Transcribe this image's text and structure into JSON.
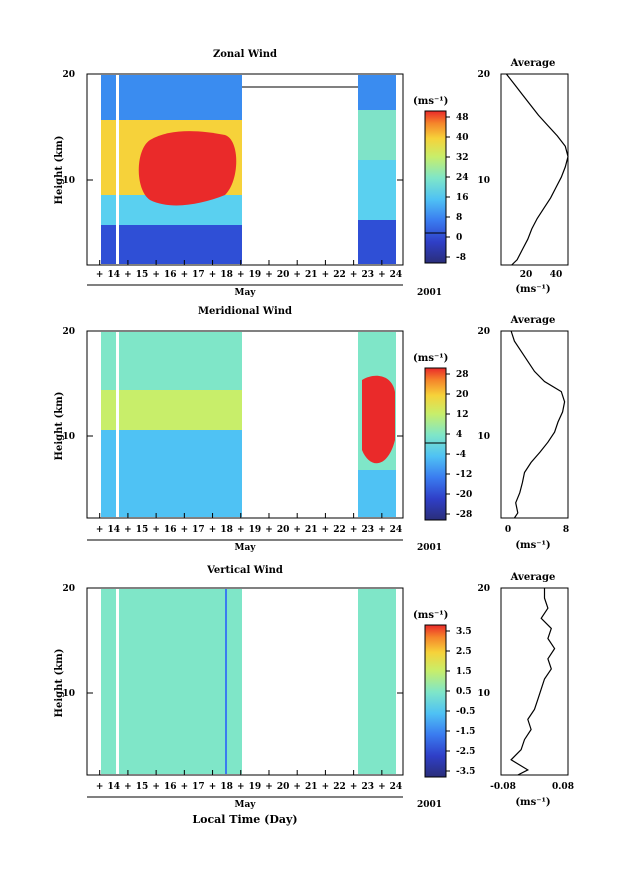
{
  "figure": {
    "xlabel": "Local Time (Day)",
    "month_label": "May",
    "year_label": "2001",
    "day_ticks": [
      "14",
      "15",
      "16",
      "17",
      "18",
      "19",
      "20",
      "21",
      "22",
      "23",
      "24"
    ]
  },
  "chart_data": [
    {
      "type": "heatmap",
      "title": "Zonal Wind",
      "ylabel": "Height (km)",
      "xlabel": "Local Time (Day)",
      "x_range_days": [
        14,
        24.5
      ],
      "ylim": [
        1.5,
        20
      ],
      "y_ticks": [
        10,
        20
      ],
      "data_gaps_days": [
        [
          19.2,
          23.1
        ]
      ],
      "colorbar": {
        "unit_label": "(ms⁻¹)",
        "ticks": [
          "48",
          "40",
          "32",
          "24",
          "16",
          "8",
          "0",
          "-8"
        ],
        "range": [
          -12,
          52
        ]
      },
      "features": [
        {
          "description": "strong westerly jet",
          "height_km": [
            8,
            13
          ],
          "days": [
            16.0,
            18.6
          ],
          "value_ms": 48
        },
        {
          "description": "weak/easterly winds near surface",
          "height_km": [
            1.5,
            4
          ],
          "value_ms": -4
        }
      ],
      "average_profile": {
        "title": "Average",
        "xlabel": "(ms⁻¹)",
        "x_ticks": [
          "20",
          "40"
        ],
        "y_ticks": [
          10,
          20
        ],
        "height_km": [
          1.5,
          2,
          3,
          4,
          5,
          6,
          7,
          8,
          9,
          10,
          11,
          12,
          13,
          14,
          15,
          16,
          17,
          18,
          19,
          20
        ],
        "values": [
          8,
          12,
          16,
          20,
          23,
          27,
          32,
          37,
          41,
          45,
          48,
          50,
          48,
          42,
          35,
          28,
          22,
          16,
          10,
          4
        ],
        "xlim": [
          0,
          50
        ]
      }
    },
    {
      "type": "heatmap",
      "title": "Meridional Wind",
      "ylabel": "Height (km)",
      "xlabel": "Local Time (Day)",
      "x_range_days": [
        14,
        24.5
      ],
      "ylim": [
        1.5,
        20
      ],
      "y_ticks": [
        10,
        20
      ],
      "data_gaps_days": [
        [
          19.2,
          23.1
        ]
      ],
      "colorbar": {
        "unit_label": "(ms⁻¹)",
        "ticks": [
          "28",
          "20",
          "12",
          "4",
          "-4",
          "-12",
          "-20",
          "-28"
        ],
        "range": [
          -32,
          32
        ]
      },
      "features": [
        {
          "description": "strong northerly flow",
          "height_km": [
            7,
            13
          ],
          "days": [
            23.3,
            24.2
          ],
          "value_ms": 28
        }
      ],
      "average_profile": {
        "title": "Average",
        "xlabel": "(ms⁻¹)",
        "x_ticks": [
          "0",
          "8"
        ],
        "y_ticks": [
          10,
          20
        ],
        "height_km": [
          1.5,
          2,
          3,
          4,
          5,
          6,
          7,
          8,
          9,
          10,
          11,
          12,
          13,
          14,
          15,
          16,
          17,
          18,
          19,
          20
        ],
        "values": [
          1.0,
          1.5,
          1.2,
          1.8,
          2.2,
          2.5,
          3.5,
          4.8,
          6.0,
          7.0,
          7.5,
          8.2,
          8.5,
          8.0,
          5.5,
          4.0,
          3.0,
          2.0,
          1.0,
          0.5
        ],
        "xlim": [
          -1,
          9
        ]
      }
    },
    {
      "type": "heatmap",
      "title": "Vertical Wind",
      "ylabel": "Height (km)",
      "xlabel": "Local Time (Day)",
      "x_range_days": [
        14,
        24.5
      ],
      "ylim": [
        1.5,
        20
      ],
      "y_ticks": [
        10,
        20
      ],
      "data_gaps_days": [
        [
          19.2,
          23.1
        ]
      ],
      "colorbar": {
        "unit_label": "(ms⁻¹)",
        "ticks": [
          "3.5",
          "2.5",
          "1.5",
          "0.5",
          "-0.5",
          "-1.5",
          "-2.5",
          "-3.5"
        ],
        "range": [
          -4,
          4
        ]
      },
      "features": [
        {
          "description": "near-zero vertical wind throughout",
          "value_ms": 0
        }
      ],
      "average_profile": {
        "title": "Average",
        "xlabel": "(ms⁻¹)",
        "x_ticks": [
          "-0.08",
          "0.08"
        ],
        "y_ticks": [
          10,
          20
        ],
        "height_km": [
          1.5,
          2,
          3,
          4,
          5,
          6,
          7,
          8,
          9,
          10,
          11,
          12,
          13,
          14,
          15,
          16,
          17,
          18,
          19,
          20
        ],
        "values": [
          -0.05,
          -0.02,
          -0.07,
          -0.04,
          -0.03,
          -0.01,
          -0.02,
          0.0,
          0.01,
          0.02,
          0.03,
          0.05,
          0.04,
          0.06,
          0.04,
          0.05,
          0.02,
          0.04,
          0.03,
          0.03
        ],
        "xlim": [
          -0.1,
          0.1
        ]
      }
    }
  ]
}
